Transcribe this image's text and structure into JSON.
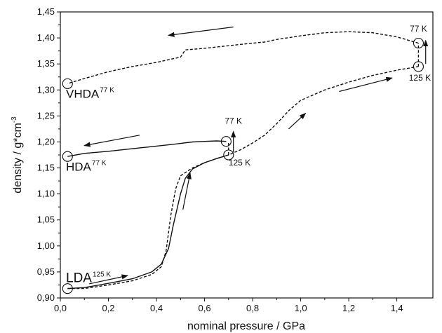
{
  "chart_data": {
    "type": "line",
    "xlabel": "nominal pressure / GPa",
    "ylabel": "density / g*cm",
    "ylabel_superscript": "-3",
    "xlim": [
      0.0,
      1.55
    ],
    "ylim": [
      0.9,
      1.45
    ],
    "x_ticks": [
      "0,0",
      "0,2",
      "0,4",
      "0,6",
      "0,8",
      "1,0",
      "1,2",
      "1,4"
    ],
    "y_ticks": [
      "0,90",
      "0,95",
      "1,00",
      "1,05",
      "1,10",
      "1,15",
      "1,20",
      "1,25",
      "1,30",
      "1,35",
      "1,40",
      "1,45"
    ],
    "series": [
      {
        "style": "dashed",
        "x": [
          0.03,
          0.1,
          0.2,
          0.3,
          0.38,
          0.42,
          0.44,
          0.46,
          0.48,
          0.5,
          0.55,
          0.6,
          0.65,
          0.7,
          0.75,
          0.8,
          0.85,
          0.9,
          0.95,
          1.0,
          1.05,
          1.1,
          1.2,
          1.3,
          1.4,
          1.49
        ],
        "y": [
          0.918,
          0.918,
          0.925,
          0.933,
          0.945,
          0.96,
          0.99,
          1.06,
          1.11,
          1.135,
          1.15,
          1.16,
          1.168,
          1.175,
          1.185,
          1.198,
          1.213,
          1.235,
          1.26,
          1.28,
          1.29,
          1.3,
          1.315,
          1.328,
          1.338,
          1.345
        ]
      },
      {
        "style": "solid",
        "x": [
          0.03,
          0.1,
          0.2,
          0.3,
          0.38,
          0.42,
          0.45,
          0.47,
          0.5,
          0.52,
          0.55,
          0.6,
          0.65,
          0.7
        ],
        "y": [
          0.918,
          0.92,
          0.928,
          0.937,
          0.95,
          0.965,
          0.995,
          1.04,
          1.1,
          1.13,
          1.148,
          1.16,
          1.168,
          1.175
        ]
      },
      {
        "style": "solid",
        "x": [
          0.03,
          0.1,
          0.2,
          0.3,
          0.4,
          0.48,
          0.55,
          0.6,
          0.65,
          0.69
        ],
        "y": [
          1.172,
          1.178,
          1.182,
          1.187,
          1.192,
          1.196,
          1.2,
          1.201,
          1.202,
          1.201
        ]
      },
      {
        "style": "dashed",
        "x": [
          1.49,
          1.4,
          1.3,
          1.2,
          1.1,
          1.0,
          0.9,
          0.85,
          0.8,
          0.7,
          0.6,
          0.52,
          0.51,
          0.5,
          0.45,
          0.4,
          0.3,
          0.2,
          0.1,
          0.05,
          0.03
        ],
        "y": [
          1.39,
          1.402,
          1.41,
          1.412,
          1.41,
          1.404,
          1.397,
          1.392,
          1.39,
          1.385,
          1.38,
          1.377,
          1.37,
          1.363,
          1.358,
          1.353,
          1.345,
          1.335,
          1.322,
          1.315,
          1.312
        ]
      },
      {
        "style": "dashed",
        "x": [
          0.7,
          0.7
        ],
        "y": [
          1.175,
          1.201
        ]
      },
      {
        "style": "dashed",
        "x": [
          1.49,
          1.49
        ],
        "y": [
          1.345,
          1.39
        ]
      }
    ],
    "markers": [
      {
        "x": 0.03,
        "y": 0.918
      },
      {
        "x": 0.7,
        "y": 1.175
      },
      {
        "x": 0.69,
        "y": 1.201
      },
      {
        "x": 0.03,
        "y": 1.172
      },
      {
        "x": 1.49,
        "y": 1.345
      },
      {
        "x": 1.49,
        "y": 1.39
      },
      {
        "x": 0.03,
        "y": 1.312
      }
    ],
    "arrows": [
      {
        "x1": 0.12,
        "y1": 0.927,
        "x2": 0.28,
        "y2": 0.943
      },
      {
        "x1": 0.51,
        "y1": 1.07,
        "x2": 0.54,
        "y2": 1.14
      },
      {
        "x1": 0.95,
        "y1": 1.225,
        "x2": 1.02,
        "y2": 1.255
      },
      {
        "x1": 1.16,
        "y1": 1.297,
        "x2": 1.38,
        "y2": 1.323
      },
      {
        "x1": 0.72,
        "y1": 1.18,
        "x2": 0.72,
        "y2": 1.22
      },
      {
        "x1": 1.52,
        "y1": 1.35,
        "x2": 1.52,
        "y2": 1.395
      },
      {
        "x1": 0.33,
        "y1": 1.213,
        "x2": 0.1,
        "y2": 1.193
      },
      {
        "x1": 0.72,
        "y1": 1.421,
        "x2": 0.45,
        "y2": 1.405
      }
    ],
    "state_labels": [
      {
        "base": "LDA",
        "sup": "125 K",
        "x": 0.0,
        "y": 0.93,
        "size": "large"
      },
      {
        "base": "HDA",
        "sup": "77 K",
        "x": 0.0,
        "y": 1.145,
        "size": "normal"
      },
      {
        "base": "VHDA",
        "sup": "77 K",
        "x": 0.0,
        "y": 1.285,
        "size": "normal"
      }
    ],
    "temp_labels": [
      {
        "text": "77 K",
        "x": 0.72,
        "y": 1.235,
        "anchor": "middle"
      },
      {
        "text": "125 K",
        "x": 0.7,
        "y": 1.155,
        "anchor": "start"
      },
      {
        "text": "77 K",
        "x": 1.49,
        "y": 1.412,
        "anchor": "middle"
      },
      {
        "text": "125 K",
        "x": 1.45,
        "y": 1.318,
        "anchor": "start"
      }
    ]
  }
}
